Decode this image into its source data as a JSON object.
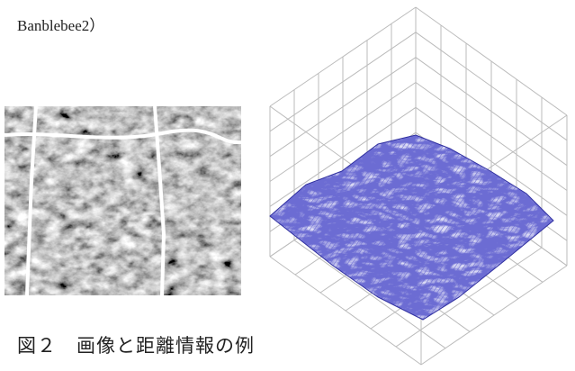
{
  "header": {
    "text": "Banblebee2）"
  },
  "figure": {
    "caption": "図２　画像と距離情報の例"
  }
}
